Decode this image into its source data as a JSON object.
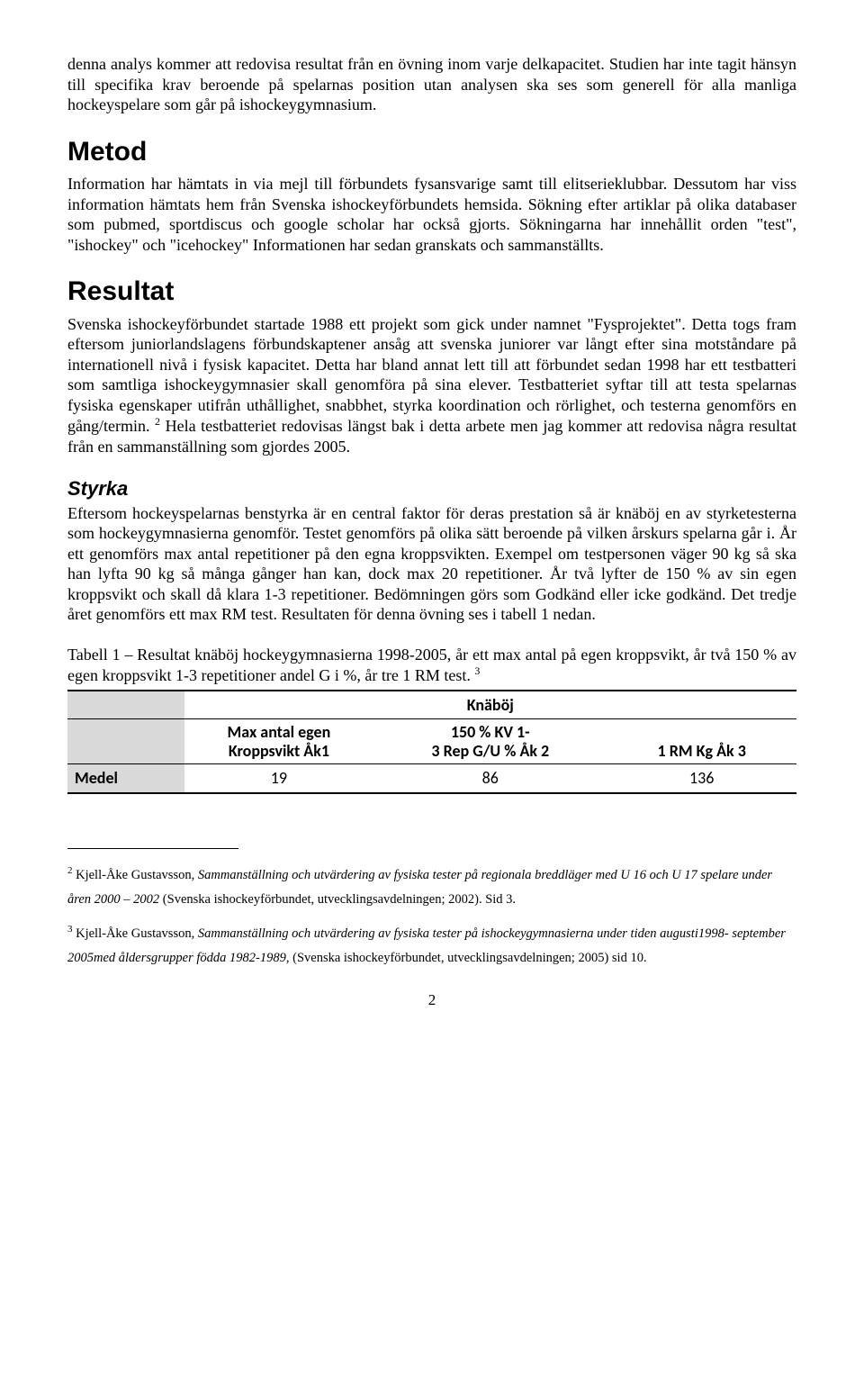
{
  "intro_para": "denna analys kommer att redovisa resultat från en övning inom varje delkapacitet. Studien har inte tagit hänsyn till specifika krav beroende på spelarnas position utan analysen ska ses som generell för alla manliga hockeyspelare som går på ishockeygymnasium.",
  "metod": {
    "heading": "Metod",
    "para": "Information har hämtats in via mejl till förbundets fysansvarige samt till elitserieklubbar. Dessutom har viss information hämtats hem från Svenska ishockeyförbundets hemsida. Sökning efter artiklar på olika databaser som pubmed, sportdiscus och google scholar har också gjorts. Sökningarna har innehållit orden \"test\", \"ishockey\" och \"icehockey\" Informationen har sedan granskats och sammanställts."
  },
  "resultat": {
    "heading": "Resultat",
    "para_html": "Svenska ishockeyförbundet startade 1988 ett projekt som gick under namnet \"Fysprojektet\". Detta togs fram eftersom juniorlandslagens förbundskaptener ansåg att svenska juniorer var långt efter sina motståndare på internationell nivå i fysisk kapacitet. Detta har bland annat lett till att förbundet sedan 1998 har ett testbatteri som samtliga ishockeygymnasier skall genomföra på sina elever. Testbatteriet syftar till att testa spelarnas fysiska egenskaper utifrån uthållighet, snabbhet, styrka koordination och rörlighet, och testerna genomförs en gång/termin. <sup>2</sup> Hela testbatteriet redovisas längst bak i detta arbete men jag kommer att redovisa några resultat från en sammanställning som gjordes 2005."
  },
  "styrka": {
    "heading": "Styrka",
    "para": "Eftersom hockeyspelarnas benstyrka är en central faktor för deras prestation så är knäböj en av styrketesterna som hockeygymnasierna genomför. Testet genomförs på olika sätt beroende på vilken årskurs spelarna går i. År ett genomförs max antal repetitioner på den egna kroppsvikten. Exempel om testpersonen väger 90 kg så ska han lyfta 90 kg så många gånger han kan, dock max 20 repetitioner. År två lyfter de 150 % av sin egen kroppsvikt och skall då klara 1-3 repetitioner. Bedömningen görs som Godkänd eller icke godkänd. Det tredje året genomförs ett max RM test. Resultaten för denna övning ses i tabell 1 nedan.",
    "caption_html": "Tabell 1 – Resultat knäböj hockeygymnasierna 1998-2005, år ett max antal på egen kroppsvikt, år två 150 % av egen kroppsvikt 1-3 repetitioner andel G i %, år tre 1 RM test. <sup>3</sup>"
  },
  "table": {
    "title": "Knäböj",
    "col1": "Max antal egen\nKroppsvikt Åk1",
    "col2": "150 % KV              1-\n3 Rep G/U % Åk 2",
    "col3": "1 RM Kg Åk 3",
    "row_label": "Medel",
    "v1": "19",
    "v2": "86",
    "v3": "136"
  },
  "footnotes": {
    "fn2_html": "<span class=\"fn-num\">2</span> Kjell-Åke Gustavsson, <span class=\"ital\">Sammanställning och utvärdering av fysiska tester på regionala breddläger med U 16 och U 17 spelare under åren 2000 – 2002</span> (Svenska ishockeyförbundet, utvecklingsavdelningen; 2002). Sid 3.",
    "fn3_html": "<span class=\"fn-num\">3</span> Kjell-Åke Gustavsson, <span class=\"ital\">Sammanställning och utvärdering av fysiska tester på ishockeygymnasierna under tiden augusti1998- september 2005med åldersgrupper födda 1982-1989</span>, (Svenska ishockeyförbundet, utvecklingsavdelningen; 2005) sid 10."
  },
  "page_number": "2"
}
